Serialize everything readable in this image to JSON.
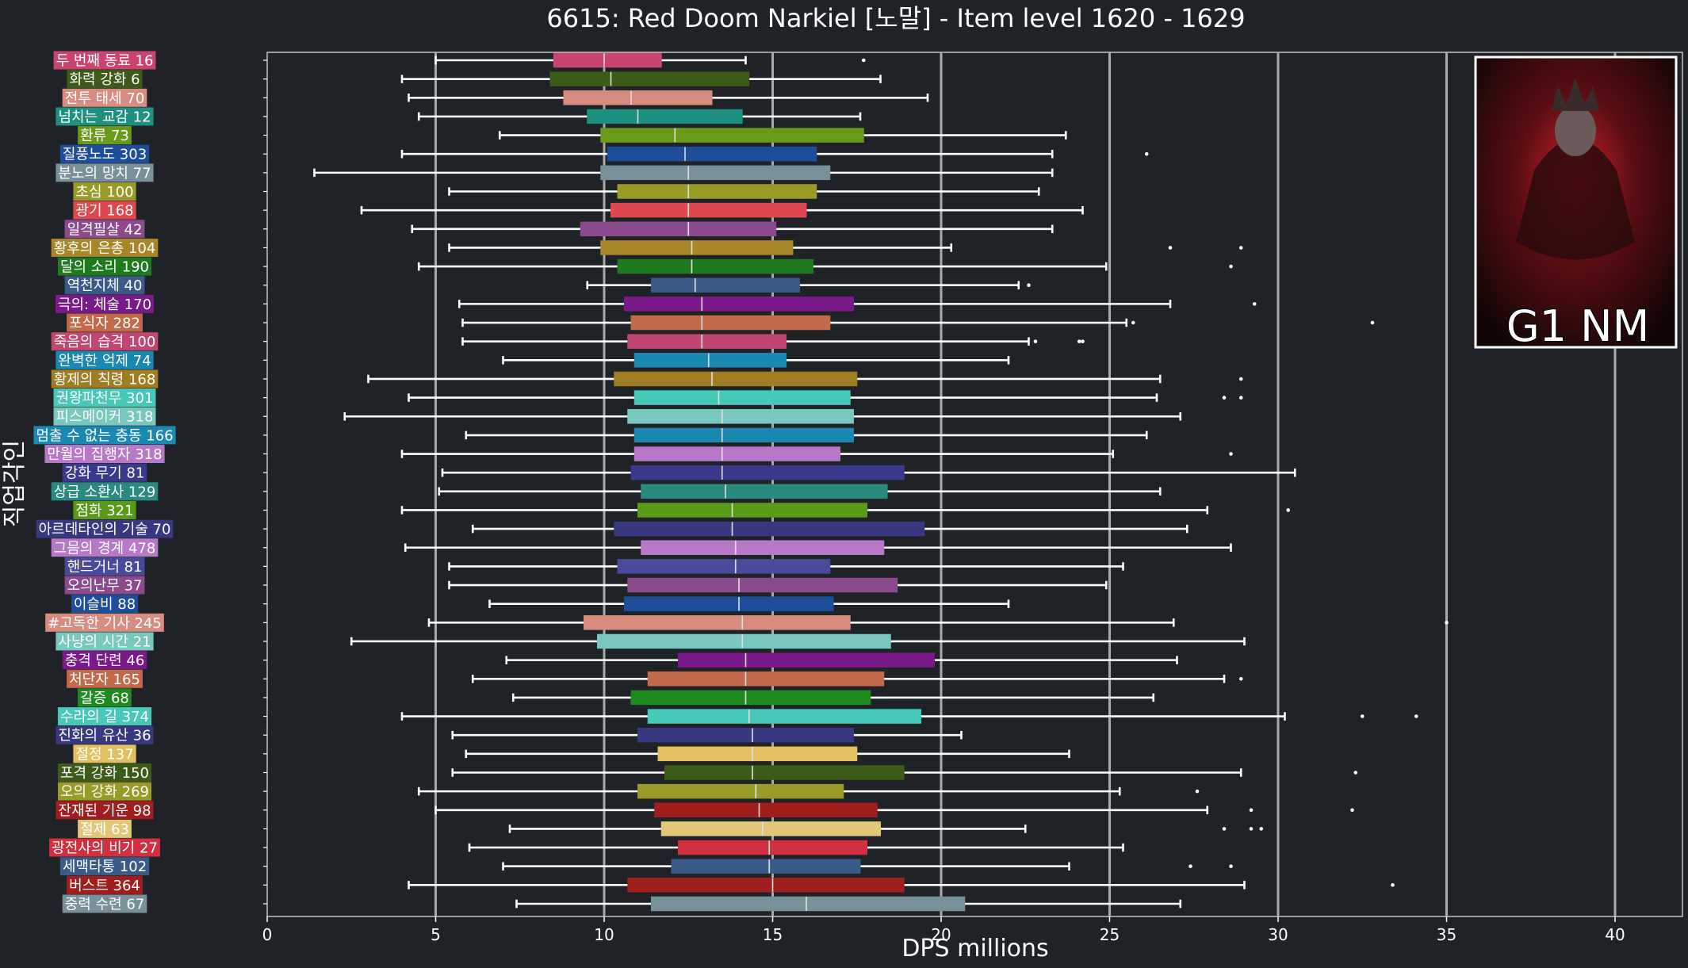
{
  "chart_data": {
    "type": "box",
    "title": "6615: Red Doom Narkiel [노말] - Item level 1620 - 1629",
    "xlabel": "DPS millions",
    "ylabel": "직업각인",
    "xlim": [
      0,
      42
    ],
    "xticks": [
      0,
      5,
      10,
      15,
      20,
      25,
      30,
      35,
      40
    ],
    "grid": "vertical",
    "badge": "G1 NM",
    "rows": [
      {
        "label": "두 번째 동료 16",
        "color": "#c94570",
        "q1": 8.5,
        "median": 10.0,
        "q3": 11.7,
        "wmin": 5.0,
        "wmax": 14.2,
        "outliers": [
          17.7
        ]
      },
      {
        "label": "화력 강화 6",
        "color": "#3c5a18",
        "q1": 8.4,
        "median": 10.2,
        "q3": 14.3,
        "wmin": 4.0,
        "wmax": 18.2,
        "outliers": []
      },
      {
        "label": "전투 태세 70",
        "color": "#d88c80",
        "q1": 8.8,
        "median": 10.8,
        "q3": 13.2,
        "wmin": 4.2,
        "wmax": 19.6,
        "outliers": []
      },
      {
        "label": "넘치는 교감 12",
        "color": "#1f8f80",
        "q1": 9.5,
        "median": 11.0,
        "q3": 14.1,
        "wmin": 4.5,
        "wmax": 17.6,
        "outliers": []
      },
      {
        "label": "환류 73",
        "color": "#6a9a1a",
        "q1": 9.9,
        "median": 12.1,
        "q3": 17.7,
        "wmin": 6.9,
        "wmax": 23.7,
        "outliers": []
      },
      {
        "label": "질풍노도 303",
        "color": "#1e4e9a",
        "q1": 10.1,
        "median": 12.4,
        "q3": 16.3,
        "wmin": 4.0,
        "wmax": 23.3,
        "outliers": [
          26.1
        ]
      },
      {
        "label": "분노의 망치 77",
        "color": "#78909a",
        "q1": 9.9,
        "median": 12.5,
        "q3": 16.7,
        "wmin": 1.4,
        "wmax": 23.3,
        "outliers": []
      },
      {
        "label": "초심 100",
        "color": "#9a9a28",
        "q1": 10.4,
        "median": 12.5,
        "q3": 16.3,
        "wmin": 5.4,
        "wmax": 22.9,
        "outliers": []
      },
      {
        "label": "광기 168",
        "color": "#e04850",
        "q1": 10.2,
        "median": 12.5,
        "q3": 16.0,
        "wmin": 2.8,
        "wmax": 24.2,
        "outliers": []
      },
      {
        "label": "일격필살 42",
        "color": "#8a4a8c",
        "q1": 9.3,
        "median": 12.5,
        "q3": 15.1,
        "wmin": 4.3,
        "wmax": 23.3,
        "outliers": []
      },
      {
        "label": "황후의 은총 104",
        "color": "#a8862a",
        "q1": 9.9,
        "median": 12.6,
        "q3": 15.6,
        "wmin": 5.4,
        "wmax": 20.3,
        "outliers": [
          26.8,
          28.9
        ]
      },
      {
        "label": "달의 소리 190",
        "color": "#1f7a1f",
        "q1": 10.4,
        "median": 12.6,
        "q3": 16.2,
        "wmin": 4.5,
        "wmax": 24.9,
        "outliers": [
          28.6
        ]
      },
      {
        "label": "역천지체 40",
        "color": "#3a5a88",
        "q1": 11.4,
        "median": 12.7,
        "q3": 15.8,
        "wmin": 9.5,
        "wmax": 22.3,
        "outliers": [
          22.6
        ]
      },
      {
        "label": "극의: 체술 170",
        "color": "#7a1a8a",
        "q1": 10.6,
        "median": 12.9,
        "q3": 17.4,
        "wmin": 5.7,
        "wmax": 26.8,
        "outliers": [
          29.3
        ]
      },
      {
        "label": "포식자 282",
        "color": "#c46a4a",
        "q1": 10.8,
        "median": 12.9,
        "q3": 16.7,
        "wmin": 5.8,
        "wmax": 25.5,
        "outliers": [
          25.7,
          32.8
        ]
      },
      {
        "label": "죽음의 습격 100",
        "color": "#c04870",
        "q1": 10.7,
        "median": 12.9,
        "q3": 15.4,
        "wmin": 5.8,
        "wmax": 22.6,
        "outliers": [
          22.8,
          24.1,
          24.2
        ]
      },
      {
        "label": "완벽한 억제 74",
        "color": "#1a88b0",
        "q1": 10.9,
        "median": 13.1,
        "q3": 15.4,
        "wmin": 7.0,
        "wmax": 22.0,
        "outliers": []
      },
      {
        "label": "황제의 칙령 168",
        "color": "#a07c22",
        "q1": 10.3,
        "median": 13.2,
        "q3": 17.5,
        "wmin": 3.0,
        "wmax": 26.5,
        "outliers": [
          28.9
        ]
      },
      {
        "label": "권왕파천무 301",
        "color": "#48c8b8",
        "q1": 10.9,
        "median": 13.4,
        "q3": 17.3,
        "wmin": 4.2,
        "wmax": 26.4,
        "outliers": [
          28.4,
          28.9
        ]
      },
      {
        "label": "피스메이커 318",
        "color": "#78c8c0",
        "q1": 10.7,
        "median": 13.5,
        "q3": 17.4,
        "wmin": 2.3,
        "wmax": 27.1,
        "outliers": []
      },
      {
        "label": "멈출 수 없는 충동 166",
        "color": "#1a88b0",
        "q1": 10.9,
        "median": 13.5,
        "q3": 17.4,
        "wmin": 5.9,
        "wmax": 26.1,
        "outliers": []
      },
      {
        "label": "만월의 집행자 318",
        "color": "#b878c8",
        "q1": 10.9,
        "median": 13.5,
        "q3": 17.0,
        "wmin": 4.0,
        "wmax": 25.1,
        "outliers": [
          28.6
        ]
      },
      {
        "label": "강화 무기 81",
        "color": "#3a3a8c",
        "q1": 10.8,
        "median": 13.5,
        "q3": 18.9,
        "wmin": 5.2,
        "wmax": 30.5,
        "outliers": []
      },
      {
        "label": "상급 소환사 129",
        "color": "#2a8a80",
        "q1": 11.1,
        "median": 13.6,
        "q3": 18.4,
        "wmin": 5.1,
        "wmax": 26.5,
        "outliers": []
      },
      {
        "label": "점화 321",
        "color": "#5a9a1a",
        "q1": 11.0,
        "median": 13.8,
        "q3": 17.8,
        "wmin": 4.0,
        "wmax": 27.9,
        "outliers": [
          30.3
        ]
      },
      {
        "label": "아르데타인의 기술 70",
        "color": "#383880",
        "q1": 10.3,
        "median": 13.8,
        "q3": 19.5,
        "wmin": 6.1,
        "wmax": 27.3,
        "outliers": []
      },
      {
        "label": "그믐의 경계 478",
        "color": "#b878c8",
        "q1": 11.1,
        "median": 13.9,
        "q3": 18.3,
        "wmin": 4.1,
        "wmax": 28.6,
        "outliers": []
      },
      {
        "label": "핸드거너 81",
        "color": "#4a4a9a",
        "q1": 10.4,
        "median": 13.9,
        "q3": 16.7,
        "wmin": 5.4,
        "wmax": 25.4,
        "outliers": []
      },
      {
        "label": "오의난무 37",
        "color": "#8a4a8c",
        "q1": 10.7,
        "median": 14.0,
        "q3": 18.7,
        "wmin": 5.4,
        "wmax": 24.9,
        "outliers": []
      },
      {
        "label": "이슬비 88",
        "color": "#1e4e9a",
        "q1": 10.6,
        "median": 14.0,
        "q3": 16.8,
        "wmin": 6.6,
        "wmax": 22.0,
        "outliers": []
      },
      {
        "label": "#고독한 기사 245",
        "color": "#d88c80",
        "q1": 9.4,
        "median": 14.1,
        "q3": 17.3,
        "wmin": 4.8,
        "wmax": 26.9,
        "outliers": [
          35.0
        ]
      },
      {
        "label": "사냥의 시간 21",
        "color": "#78c8c0",
        "q1": 9.8,
        "median": 14.1,
        "q3": 18.5,
        "wmin": 2.5,
        "wmax": 29.0,
        "outliers": []
      },
      {
        "label": "충격 단련 46",
        "color": "#7a1a8a",
        "q1": 12.2,
        "median": 14.2,
        "q3": 19.8,
        "wmin": 7.1,
        "wmax": 27.0,
        "outliers": []
      },
      {
        "label": "처단자 165",
        "color": "#c46a4a",
        "q1": 11.3,
        "median": 14.2,
        "q3": 18.3,
        "wmin": 6.1,
        "wmax": 28.4,
        "outliers": [
          28.9
        ]
      },
      {
        "label": "갈증 68",
        "color": "#1f8a1f",
        "q1": 10.8,
        "median": 14.2,
        "q3": 17.9,
        "wmin": 7.3,
        "wmax": 26.3,
        "outliers": []
      },
      {
        "label": "수라의 길 374",
        "color": "#48c8b8",
        "q1": 11.3,
        "median": 14.3,
        "q3": 19.4,
        "wmin": 4.0,
        "wmax": 30.2,
        "outliers": [
          32.5,
          34.1
        ]
      },
      {
        "label": "진화의 유산 36",
        "color": "#383880",
        "q1": 11.0,
        "median": 14.4,
        "q3": 17.4,
        "wmin": 5.5,
        "wmax": 20.6,
        "outliers": []
      },
      {
        "label": "절정 137",
        "color": "#e0c060",
        "q1": 11.6,
        "median": 14.4,
        "q3": 17.5,
        "wmin": 5.9,
        "wmax": 23.8,
        "outliers": []
      },
      {
        "label": "포격 강화 150",
        "color": "#3c5a18",
        "q1": 11.8,
        "median": 14.4,
        "q3": 18.9,
        "wmin": 5.5,
        "wmax": 28.9,
        "outliers": [
          32.3
        ]
      },
      {
        "label": "오의 강화 269",
        "color": "#9a9a28",
        "q1": 11.0,
        "median": 14.5,
        "q3": 17.1,
        "wmin": 4.5,
        "wmax": 25.3,
        "outliers": [
          27.6
        ]
      },
      {
        "label": "잔재된 기운 98",
        "color": "#a01e1e",
        "q1": 11.5,
        "median": 14.6,
        "q3": 18.1,
        "wmin": 5.0,
        "wmax": 27.9,
        "outliers": [
          29.2,
          32.2
        ]
      },
      {
        "label": "절제 63",
        "color": "#e0c878",
        "q1": 11.7,
        "median": 14.7,
        "q3": 18.2,
        "wmin": 7.2,
        "wmax": 22.5,
        "outliers": [
          28.4,
          29.2,
          29.5
        ]
      },
      {
        "label": "광전사의 비기 27",
        "color": "#d03040",
        "q1": 12.2,
        "median": 14.9,
        "q3": 17.8,
        "wmin": 6.0,
        "wmax": 25.4,
        "outliers": []
      },
      {
        "label": "세맥타통 102",
        "color": "#3a5a88",
        "q1": 12.0,
        "median": 14.9,
        "q3": 17.6,
        "wmin": 7.0,
        "wmax": 23.8,
        "outliers": [
          27.4,
          28.6
        ]
      },
      {
        "label": "버스트 364",
        "color": "#a01e1e",
        "q1": 10.7,
        "median": 15.0,
        "q3": 18.9,
        "wmin": 4.2,
        "wmax": 29.0,
        "outliers": [
          33.4
        ]
      },
      {
        "label": "중력 수련 67",
        "color": "#78909a",
        "q1": 11.4,
        "median": 16.0,
        "q3": 20.7,
        "wmin": 7.4,
        "wmax": 27.1,
        "outliers": []
      }
    ]
  }
}
